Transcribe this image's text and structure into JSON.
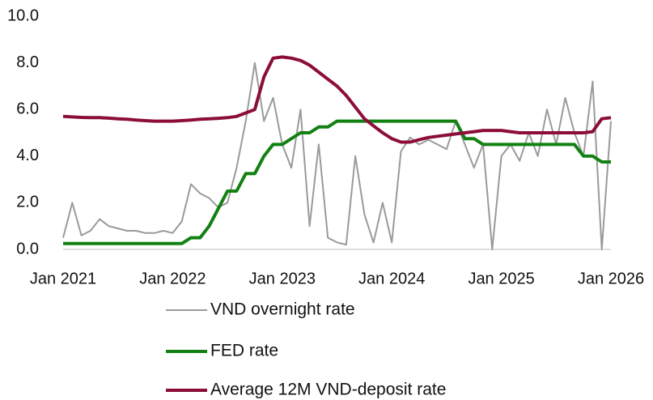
{
  "chart_data": {
    "type": "line",
    "categories": [
      "Jan 2021",
      null,
      null,
      null,
      null,
      null,
      null,
      null,
      null,
      null,
      null,
      null,
      "Jan 2022",
      null,
      null,
      null,
      null,
      null,
      null,
      null,
      null,
      null,
      null,
      null,
      "Jan 2023",
      null,
      null,
      null,
      null,
      null,
      null,
      null,
      null,
      null,
      null,
      null,
      "Jan 2024",
      null,
      null,
      null,
      null,
      null,
      null,
      null,
      null,
      null,
      null,
      null,
      "Jan 2025",
      null,
      null,
      null,
      null,
      null,
      null,
      null,
      null,
      null,
      null,
      null,
      "Jan 2026"
    ],
    "series": [
      {
        "name": "VND overnight rate",
        "color": "#9a9a9a",
        "width": 2,
        "values": [
          0.5,
          2.0,
          0.6,
          0.8,
          1.3,
          1.0,
          0.9,
          0.8,
          0.8,
          0.7,
          0.7,
          0.8,
          0.7,
          1.2,
          2.8,
          2.4,
          2.2,
          1.8,
          2.0,
          3.5,
          5.5,
          8.0,
          5.5,
          6.5,
          4.5,
          3.5,
          6.0,
          1.0,
          4.5,
          0.5,
          0.3,
          0.2,
          4.0,
          1.5,
          0.3,
          2.0,
          0.3,
          4.2,
          4.8,
          4.5,
          4.7,
          4.5,
          4.3,
          5.5,
          4.5,
          3.5,
          4.5,
          0.0,
          4.0,
          4.5,
          3.8,
          5.0,
          4.0,
          6.0,
          4.5,
          6.5,
          5.0,
          4.0,
          7.2,
          0.0,
          5.5
        ]
      },
      {
        "name": "FED rate",
        "color": "#128012",
        "width": 4,
        "values": [
          0.25,
          0.25,
          0.25,
          0.25,
          0.25,
          0.25,
          0.25,
          0.25,
          0.25,
          0.25,
          0.25,
          0.25,
          0.25,
          0.25,
          0.5,
          0.5,
          1.0,
          1.75,
          2.5,
          2.5,
          3.25,
          3.25,
          4.0,
          4.5,
          4.5,
          4.75,
          5.0,
          5.0,
          5.25,
          5.25,
          5.5,
          5.5,
          5.5,
          5.5,
          5.5,
          5.5,
          5.5,
          5.5,
          5.5,
          5.5,
          5.5,
          5.5,
          5.5,
          5.5,
          4.75,
          4.75,
          4.5,
          4.5,
          4.5,
          4.5,
          4.5,
          4.5,
          4.5,
          4.5,
          4.5,
          4.5,
          4.5,
          4.0,
          4.0,
          3.75,
          3.75
        ]
      },
      {
        "name": "Average 12M VND-deposit rate",
        "color": "#8c0d3a",
        "width": 4,
        "values": [
          5.7,
          5.68,
          5.66,
          5.65,
          5.65,
          5.63,
          5.6,
          5.58,
          5.55,
          5.52,
          5.5,
          5.5,
          5.5,
          5.52,
          5.55,
          5.58,
          5.6,
          5.62,
          5.65,
          5.7,
          5.85,
          6.0,
          7.4,
          8.2,
          8.25,
          8.2,
          8.1,
          7.9,
          7.6,
          7.3,
          7.0,
          6.6,
          6.1,
          5.6,
          5.3,
          5.0,
          4.75,
          4.6,
          4.6,
          4.7,
          4.8,
          4.85,
          4.9,
          4.95,
          5.0,
          5.05,
          5.1,
          5.1,
          5.1,
          5.05,
          5.0,
          5.0,
          5.0,
          5.0,
          5.0,
          5.0,
          5.0,
          5.0,
          5.05,
          5.6,
          5.65
        ]
      }
    ],
    "ylim": [
      0,
      10
    ],
    "yticks": [
      {
        "value": 0,
        "label": "0.0"
      },
      {
        "value": 2,
        "label": "2.0"
      },
      {
        "value": 4,
        "label": "4.0"
      },
      {
        "value": 6,
        "label": "6.0"
      },
      {
        "value": 8,
        "label": "8.0"
      },
      {
        "value": 10,
        "label": "10.0"
      }
    ],
    "grid": false,
    "legend": "bottom"
  }
}
